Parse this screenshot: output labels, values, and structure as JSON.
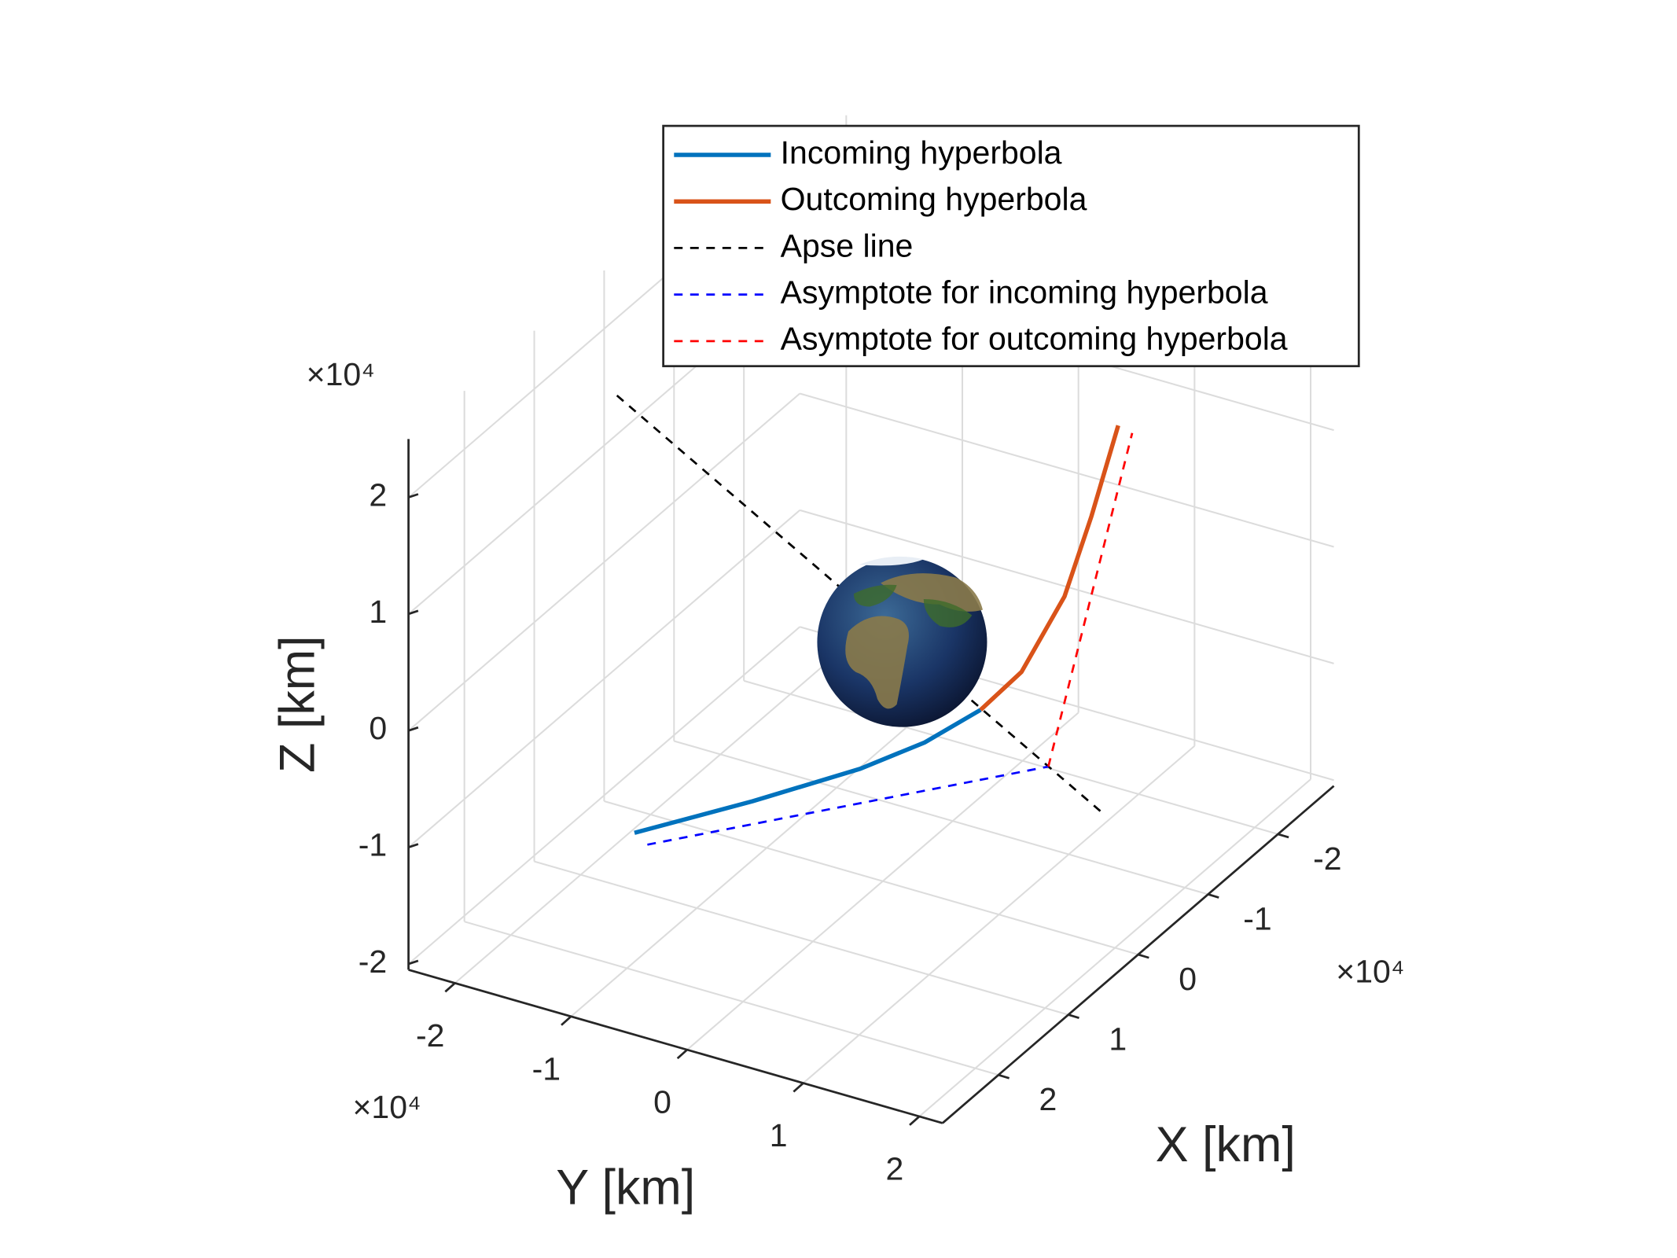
{
  "chart_data": {
    "type": "line3d",
    "xlabel": "X [km]",
    "ylabel": "Y [km]",
    "zlabel": "Z [km]",
    "x_multiplier": "×10⁴",
    "y_multiplier": "×10⁴",
    "z_multiplier": "×10⁴",
    "xlim": [
      -2.8,
      2.8
    ],
    "ylim": [
      -2.4,
      2.2
    ],
    "zlim": [
      -2.05,
      2.5
    ],
    "xticks": [
      -2,
      -1,
      0,
      1,
      2
    ],
    "yticks": [
      -2,
      -1,
      0,
      1,
      2
    ],
    "zticks": [
      -2,
      -1,
      0,
      1,
      2
    ],
    "grid": true,
    "legend": "upper right",
    "series": [
      {
        "name": "Incoming hyperbola",
        "color": "#0072BD",
        "style": "solid",
        "x": [
          2,
          1.3,
          0.7,
          0.3,
          0
        ],
        "y": [
          -0.935,
          -0.338,
          0.227,
          0.542,
          0.843
        ],
        "z": [
          -0.87,
          -0.79,
          -0.66,
          -0.55,
          -0.34
        ]
      },
      {
        "name": "Outcoming hyperbola",
        "color": "#D95319",
        "style": "solid",
        "x": [
          0,
          -0.4,
          -1,
          -1.5,
          -2
        ],
        "y": [
          0.843,
          0.954,
          0.963,
          0.894,
          0.824
        ],
        "z": [
          -0.34,
          -0.19,
          0.15,
          0.56,
          1.06
        ]
      },
      {
        "name": "Apse line",
        "color": "#000000",
        "style": "dashed",
        "x": [
          0,
          0
        ],
        "y": [
          -2.29,
          1.92
        ],
        "z": [
          1.46,
          -0.94
        ]
      },
      {
        "name": "Asymptote for incoming hyperbola",
        "color": "#0000FF",
        "style": "dashed",
        "x": [
          2,
          0
        ],
        "y": [
          -0.824,
          1.426
        ],
        "z": [
          -0.94,
          -0.66
        ]
      },
      {
        "name": "Asymptote for outcoming hyperbola",
        "color": "#FF0000",
        "style": "dashed",
        "x": [
          0,
          -2
        ],
        "y": [
          1.426,
          0.944
        ],
        "z": [
          -0.66,
          1.03
        ]
      }
    ]
  }
}
